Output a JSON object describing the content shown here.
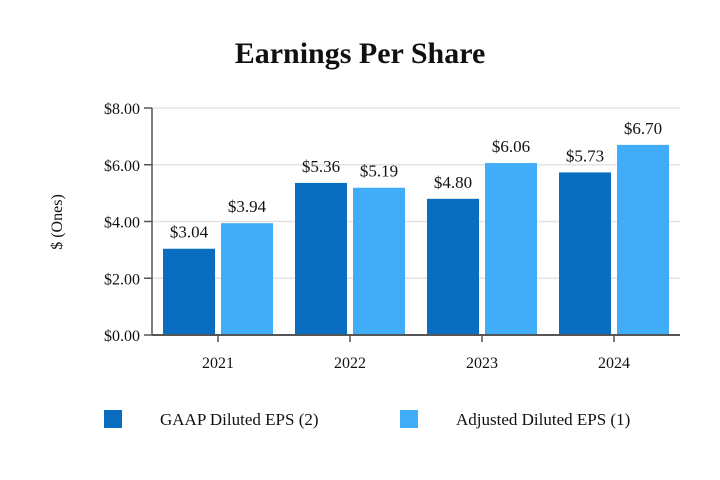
{
  "chart_data": {
    "type": "bar",
    "title": "Earnings Per Share",
    "xlabel": "",
    "ylabel": "$ (Ones)",
    "categories": [
      "2021",
      "2022",
      "2023",
      "2024"
    ],
    "ylim": [
      0,
      8
    ],
    "yticks": [
      0,
      2,
      4,
      6,
      8
    ],
    "ytick_labels": [
      "$0.00",
      "$2.00",
      "$4.00",
      "$6.00",
      "$8.00"
    ],
    "grid": true,
    "legend_position": "bottom",
    "series": [
      {
        "name": "GAAP Diluted EPS (2)",
        "color": "#0a6ec0",
        "values": [
          3.04,
          5.36,
          4.8,
          5.73
        ],
        "labels": [
          "$3.04",
          "$5.36",
          "$4.80",
          "$5.73"
        ]
      },
      {
        "name": "Adjusted Diluted EPS (1)",
        "color": "#41acf7",
        "values": [
          3.94,
          5.19,
          6.06,
          6.7
        ],
        "labels": [
          "$3.94",
          "$5.19",
          "$6.06",
          "$6.70"
        ]
      }
    ]
  }
}
